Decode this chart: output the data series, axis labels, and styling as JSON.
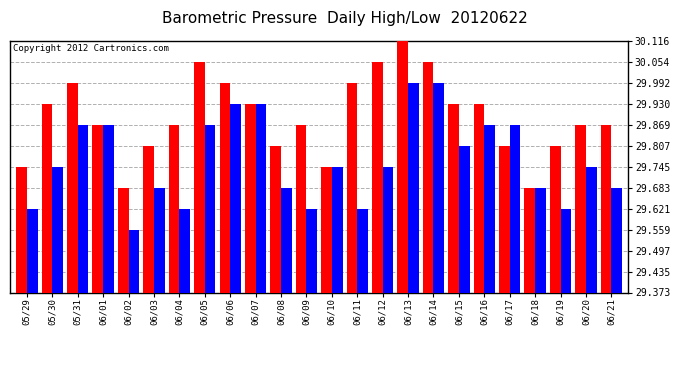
{
  "title": "Barometric Pressure  Daily High/Low  20120622",
  "copyright": "Copyright 2012 Cartronics.com",
  "categories": [
    "05/29",
    "05/30",
    "05/31",
    "06/01",
    "06/02",
    "06/03",
    "06/04",
    "06/05",
    "06/06",
    "06/07",
    "06/08",
    "06/09",
    "06/10",
    "06/11",
    "06/12",
    "06/13",
    "06/14",
    "06/15",
    "06/16",
    "06/17",
    "06/18",
    "06/19",
    "06/20",
    "06/21"
  ],
  "high_values": [
    29.745,
    29.93,
    29.992,
    29.869,
    29.683,
    29.807,
    29.869,
    30.054,
    29.992,
    29.93,
    29.807,
    29.869,
    29.745,
    29.992,
    30.054,
    30.116,
    30.054,
    29.93,
    29.93,
    29.807,
    29.683,
    29.807,
    29.869,
    29.869
  ],
  "low_values": [
    29.621,
    29.745,
    29.869,
    29.869,
    29.559,
    29.683,
    29.621,
    29.869,
    29.93,
    29.93,
    29.683,
    29.621,
    29.745,
    29.621,
    29.745,
    29.992,
    29.992,
    29.807,
    29.869,
    29.869,
    29.683,
    29.621,
    29.745,
    29.683
  ],
  "high_color": "#ff0000",
  "low_color": "#0000ff",
  "background_color": "#ffffff",
  "plot_bg_color": "#ffffff",
  "grid_color": "#b0b0b0",
  "ymin": 29.373,
  "ymax": 30.116,
  "yticks": [
    29.373,
    29.435,
    29.497,
    29.559,
    29.621,
    29.683,
    29.745,
    29.807,
    29.869,
    29.93,
    29.992,
    30.054,
    30.116
  ],
  "title_fontsize": 11,
  "copyright_fontsize": 6.5
}
